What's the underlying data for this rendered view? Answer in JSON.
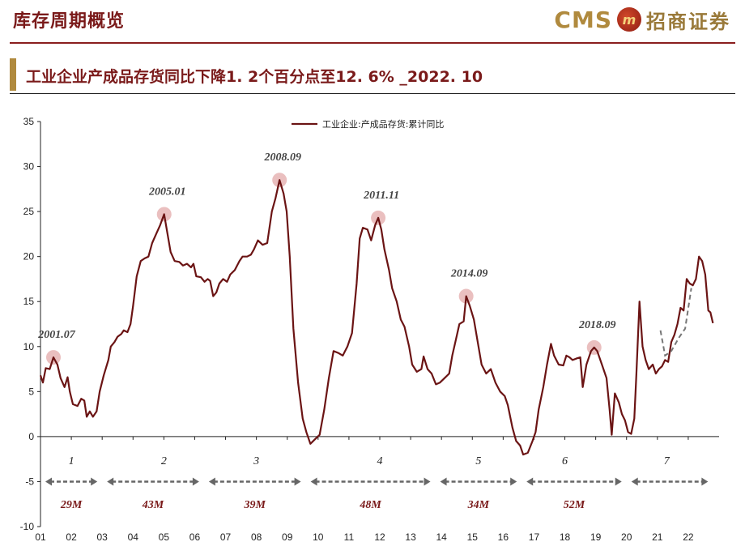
{
  "page": {
    "title": "库存周期概览",
    "subtitle": "工业企业产成品存货同比下降1. 2个百分点至12. 6% _2022. 10"
  },
  "logo": {
    "brand": "CMS",
    "mark": "m",
    "name_cn": "招商证券"
  },
  "chart_data": {
    "type": "line",
    "title": "",
    "xlabel": "",
    "ylabel": "",
    "ylim": [
      -10,
      35
    ],
    "yticks": [
      -10,
      -5,
      0,
      5,
      10,
      15,
      20,
      25,
      30,
      35
    ],
    "xticks": [
      "01",
      "02",
      "03",
      "04",
      "05",
      "06",
      "07",
      "08",
      "09",
      "10",
      "11",
      "12",
      "13",
      "14",
      "15",
      "16",
      "17",
      "18",
      "19",
      "20",
      "21",
      "22"
    ],
    "legend": {
      "position": "top-center",
      "label": "工业企业:产成品存货:累计同比"
    },
    "colors": {
      "line": "#6b1414",
      "peak_marker": "#e6b4b4",
      "arrow": "#666666",
      "dashed": "#777777"
    },
    "series": [
      {
        "name": "工业企业:产成品存货:累计同比",
        "points": [
          [
            2001.0,
            6.8
          ],
          [
            2001.08,
            6.0
          ],
          [
            2001.17,
            7.6
          ],
          [
            2001.3,
            7.5
          ],
          [
            2001.42,
            8.8
          ],
          [
            2001.55,
            8.0
          ],
          [
            2001.65,
            6.5
          ],
          [
            2001.78,
            5.5
          ],
          [
            2001.88,
            6.6
          ],
          [
            2001.95,
            5.0
          ],
          [
            2002.05,
            3.6
          ],
          [
            2002.2,
            3.4
          ],
          [
            2002.32,
            4.2
          ],
          [
            2002.42,
            4.0
          ],
          [
            2002.5,
            2.2
          ],
          [
            2002.6,
            2.8
          ],
          [
            2002.7,
            2.2
          ],
          [
            2002.82,
            2.8
          ],
          [
            2002.92,
            5.0
          ],
          [
            2003.05,
            6.8
          ],
          [
            2003.2,
            8.5
          ],
          [
            2003.28,
            10.0
          ],
          [
            2003.4,
            10.5
          ],
          [
            2003.5,
            11.1
          ],
          [
            2003.62,
            11.4
          ],
          [
            2003.7,
            11.8
          ],
          [
            2003.82,
            11.6
          ],
          [
            2003.92,
            12.5
          ],
          [
            2004.0,
            14.5
          ],
          [
            2004.12,
            17.8
          ],
          [
            2004.25,
            19.5
          ],
          [
            2004.38,
            19.8
          ],
          [
            2004.5,
            20.0
          ],
          [
            2004.62,
            21.5
          ],
          [
            2004.75,
            22.5
          ],
          [
            2004.88,
            23.5
          ],
          [
            2005.01,
            24.7
          ],
          [
            2005.12,
            22.5
          ],
          [
            2005.22,
            20.5
          ],
          [
            2005.35,
            19.5
          ],
          [
            2005.5,
            19.4
          ],
          [
            2005.62,
            19.0
          ],
          [
            2005.75,
            19.2
          ],
          [
            2005.88,
            18.8
          ],
          [
            2005.96,
            19.2
          ],
          [
            2006.05,
            17.8
          ],
          [
            2006.2,
            17.7
          ],
          [
            2006.32,
            17.2
          ],
          [
            2006.42,
            17.5
          ],
          [
            2006.5,
            17.3
          ],
          [
            2006.6,
            15.6
          ],
          [
            2006.7,
            16.0
          ],
          [
            2006.8,
            17.0
          ],
          [
            2006.92,
            17.5
          ],
          [
            2007.05,
            17.2
          ],
          [
            2007.15,
            18.0
          ],
          [
            2007.3,
            18.5
          ],
          [
            2007.45,
            19.5
          ],
          [
            2007.55,
            20.0
          ],
          [
            2007.7,
            20.0
          ],
          [
            2007.82,
            20.2
          ],
          [
            2007.92,
            20.8
          ],
          [
            2008.05,
            21.8
          ],
          [
            2008.2,
            21.3
          ],
          [
            2008.35,
            21.5
          ],
          [
            2008.5,
            25.0
          ],
          [
            2008.62,
            26.5
          ],
          [
            2008.75,
            28.5
          ],
          [
            2008.88,
            27.0
          ],
          [
            2008.98,
            25.0
          ],
          [
            2009.08,
            20.0
          ],
          [
            2009.2,
            12.0
          ],
          [
            2009.35,
            6.0
          ],
          [
            2009.5,
            2.0
          ],
          [
            2009.62,
            0.5
          ],
          [
            2009.75,
            -0.8
          ],
          [
            2009.9,
            -0.3
          ],
          [
            2010.05,
            0.2
          ],
          [
            2010.2,
            3.0
          ],
          [
            2010.35,
            6.5
          ],
          [
            2010.5,
            9.5
          ],
          [
            2010.65,
            9.3
          ],
          [
            2010.8,
            9.0
          ],
          [
            2010.95,
            10.0
          ],
          [
            2011.1,
            11.5
          ],
          [
            2011.25,
            17.0
          ],
          [
            2011.35,
            22.0
          ],
          [
            2011.45,
            23.2
          ],
          [
            2011.6,
            23.0
          ],
          [
            2011.72,
            21.8
          ],
          [
            2011.85,
            23.5
          ],
          [
            2011.95,
            24.3
          ],
          [
            2012.05,
            23.0
          ],
          [
            2012.15,
            20.8
          ],
          [
            2012.3,
            18.5
          ],
          [
            2012.4,
            16.5
          ],
          [
            2012.55,
            15.0
          ],
          [
            2012.68,
            13.0
          ],
          [
            2012.8,
            12.2
          ],
          [
            2012.95,
            10.0
          ],
          [
            2013.05,
            8.0
          ],
          [
            2013.2,
            7.2
          ],
          [
            2013.35,
            7.5
          ],
          [
            2013.42,
            8.9
          ],
          [
            2013.55,
            7.5
          ],
          [
            2013.68,
            7.0
          ],
          [
            2013.82,
            5.8
          ],
          [
            2013.95,
            6.0
          ],
          [
            2014.1,
            6.5
          ],
          [
            2014.25,
            7.0
          ],
          [
            2014.35,
            9.0
          ],
          [
            2014.45,
            10.5
          ],
          [
            2014.58,
            12.5
          ],
          [
            2014.72,
            12.8
          ],
          [
            2014.8,
            15.6
          ],
          [
            2014.92,
            14.5
          ],
          [
            2015.05,
            13.0
          ],
          [
            2015.2,
            10.0
          ],
          [
            2015.3,
            8.0
          ],
          [
            2015.45,
            7.0
          ],
          [
            2015.6,
            7.5
          ],
          [
            2015.75,
            6.0
          ],
          [
            2015.9,
            5.0
          ],
          [
            2016.05,
            4.5
          ],
          [
            2016.15,
            3.5
          ],
          [
            2016.3,
            1.0
          ],
          [
            2016.42,
            -0.5
          ],
          [
            2016.55,
            -1.0
          ],
          [
            2016.65,
            -2.0
          ],
          [
            2016.8,
            -1.8
          ],
          [
            2016.95,
            -0.5
          ],
          [
            2017.05,
            0.5
          ],
          [
            2017.15,
            3.0
          ],
          [
            2017.3,
            5.5
          ],
          [
            2017.42,
            8.0
          ],
          [
            2017.55,
            10.3
          ],
          [
            2017.65,
            9.0
          ],
          [
            2017.8,
            8.0
          ],
          [
            2017.95,
            7.9
          ],
          [
            2018.05,
            9.0
          ],
          [
            2018.15,
            8.8
          ],
          [
            2018.25,
            8.5
          ],
          [
            2018.4,
            8.7
          ],
          [
            2018.5,
            8.8
          ],
          [
            2018.58,
            5.5
          ],
          [
            2018.7,
            8.0
          ],
          [
            2018.85,
            9.5
          ],
          [
            2018.95,
            9.9
          ],
          [
            2019.05,
            9.5
          ],
          [
            2019.2,
            8.0
          ],
          [
            2019.35,
            6.5
          ],
          [
            2019.45,
            3.0
          ],
          [
            2019.52,
            0.2
          ],
          [
            2019.62,
            4.8
          ],
          [
            2019.75,
            3.8
          ],
          [
            2019.85,
            2.5
          ],
          [
            2019.95,
            1.8
          ],
          [
            2020.05,
            0.5
          ],
          [
            2020.15,
            0.3
          ],
          [
            2020.25,
            2.0
          ],
          [
            2020.32,
            7.0
          ],
          [
            2020.42,
            15.0
          ],
          [
            2020.52,
            10.0
          ],
          [
            2020.62,
            8.5
          ],
          [
            2020.72,
            7.5
          ],
          [
            2020.85,
            8.0
          ],
          [
            2020.95,
            7.0
          ],
          [
            2021.05,
            7.5
          ],
          [
            2021.15,
            7.8
          ],
          [
            2021.25,
            8.5
          ],
          [
            2021.35,
            8.3
          ],
          [
            2021.45,
            10.5
          ],
          [
            2021.55,
            11.3
          ],
          [
            2021.65,
            12.5
          ],
          [
            2021.75,
            14.3
          ],
          [
            2021.85,
            14.0
          ],
          [
            2021.95,
            17.5
          ],
          [
            2022.05,
            17.0
          ],
          [
            2022.15,
            16.8
          ],
          [
            2022.25,
            17.5
          ],
          [
            2022.35,
            20.0
          ],
          [
            2022.45,
            19.5
          ],
          [
            2022.55,
            18.0
          ],
          [
            2022.65,
            14.0
          ],
          [
            2022.72,
            13.8
          ],
          [
            2022.8,
            12.6
          ]
        ]
      },
      {
        "name": "dashed",
        "points": [
          [
            2021.1,
            11.8
          ],
          [
            2021.25,
            9.0
          ],
          [
            2021.45,
            9.5
          ],
          [
            2021.7,
            11.0
          ],
          [
            2021.9,
            12.0
          ],
          [
            2022.1,
            16.5
          ]
        ]
      }
    ],
    "peaks": [
      {
        "label": "2001.07",
        "x": 2001.42,
        "y": 8.8
      },
      {
        "label": "2005.01",
        "x": 2005.01,
        "y": 24.7
      },
      {
        "label": "2008.09",
        "x": 2008.75,
        "y": 28.5
      },
      {
        "label": "2011.11",
        "x": 2011.95,
        "y": 24.3
      },
      {
        "label": "2014.09",
        "x": 2014.8,
        "y": 15.6
      },
      {
        "label": "2018.09",
        "x": 2018.95,
        "y": 9.9
      }
    ],
    "cycles": [
      {
        "num": "1",
        "x": 2002.0,
        "duration": "29M",
        "from": 2001.0,
        "to": 2003.0
      },
      {
        "num": "2",
        "x": 2005.0,
        "duration": "43M",
        "from": 2003.0,
        "to": 2006.3
      },
      {
        "num": "3",
        "x": 2008.0,
        "duration": "39M",
        "from": 2006.3,
        "to": 2009.6
      },
      {
        "num": "4",
        "x": 2012.0,
        "duration": "48M",
        "from": 2009.6,
        "to": 2013.8
      },
      {
        "num": "5",
        "x": 2015.2,
        "duration": "34M",
        "from": 2013.8,
        "to": 2016.6
      },
      {
        "num": "6",
        "x": 2018.0,
        "duration": "52M",
        "from": 2016.6,
        "to": 2020.0
      },
      {
        "num": "7",
        "x": 2021.3,
        "duration": "",
        "from": 2020.0,
        "to": 2022.8
      }
    ]
  }
}
